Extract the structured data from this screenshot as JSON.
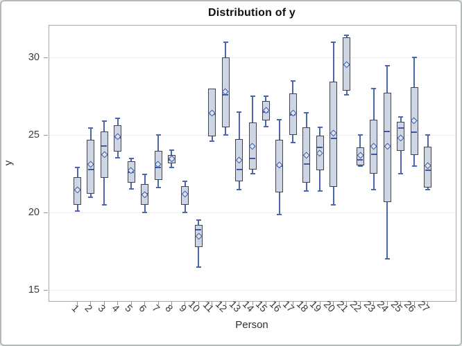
{
  "chart_data": {
    "type": "boxplot",
    "title": "Distribution of y",
    "xlabel": "Person",
    "ylabel": "y",
    "categories": [
      "1",
      "2",
      "3",
      "4",
      "5",
      "6",
      "7",
      "8",
      "9",
      "10",
      "11",
      "12",
      "13",
      "14",
      "15",
      "16",
      "17",
      "18",
      "19",
      "20",
      "21",
      "22",
      "23",
      "24",
      "25",
      "26",
      "27"
    ],
    "y_ticks": [
      15,
      20,
      25,
      30
    ],
    "ylim": [
      14.3,
      32.06
    ],
    "grid": "horizontal-only",
    "legend": "none",
    "boxes": [
      {
        "person": "1",
        "low": 20.1,
        "q1": 20.5,
        "median": 21.5,
        "q3": 22.3,
        "high": 22.9,
        "mean": 21.45
      },
      {
        "person": "2",
        "low": 21.0,
        "q1": 21.2,
        "median": 22.8,
        "q3": 24.7,
        "high": 25.45,
        "mean": 23.1
      },
      {
        "person": "3",
        "low": 20.5,
        "q1": 22.25,
        "median": 24.3,
        "q3": 25.25,
        "high": 25.9,
        "mean": 23.75
      },
      {
        "person": "4",
        "low": 23.55,
        "q1": 23.95,
        "median": 24.85,
        "q3": 25.65,
        "high": 26.1,
        "mean": 24.9
      },
      {
        "person": "5",
        "low": 21.55,
        "q1": 21.95,
        "median": 22.6,
        "q3": 23.3,
        "high": 23.5,
        "mean": 22.7
      },
      {
        "person": "6",
        "low": 20.0,
        "q1": 20.5,
        "median": 21.2,
        "q3": 21.85,
        "high": 22.45,
        "mean": 21.15
      },
      {
        "person": "7",
        "low": 21.6,
        "q1": 22.1,
        "median": 22.9,
        "q3": 24.0,
        "high": 25.0,
        "mean": 23.1
      },
      {
        "person": "8",
        "low": 22.9,
        "q1": 23.2,
        "median": 23.4,
        "q3": 23.7,
        "high": 24.05,
        "mean": 23.45
      },
      {
        "person": "9",
        "low": 20.0,
        "q1": 20.5,
        "median": 21.2,
        "q3": 21.7,
        "high": 22.0,
        "mean": 21.2
      },
      {
        "person": "10",
        "low": 16.5,
        "q1": 17.8,
        "median": 18.9,
        "q3": 19.2,
        "high": 19.5,
        "mean": 18.45
      },
      {
        "person": "11",
        "low": 24.6,
        "q1": 24.9,
        "median": 26.35,
        "q3": 28.0,
        "high": 28.0,
        "mean": 26.4
      },
      {
        "person": "12",
        "low": 25.0,
        "q1": 25.5,
        "median": 27.6,
        "q3": 30.0,
        "high": 31.0,
        "mean": 27.8
      },
      {
        "person": "13",
        "low": 21.5,
        "q1": 22.0,
        "median": 22.8,
        "q3": 24.75,
        "high": 26.5,
        "mean": 23.35
      },
      {
        "person": "14",
        "low": 22.5,
        "q1": 22.8,
        "median": 23.5,
        "q3": 25.8,
        "high": 27.5,
        "mean": 24.25
      },
      {
        "person": "15",
        "low": 25.55,
        "q1": 25.95,
        "median": 26.5,
        "q3": 27.2,
        "high": 27.5,
        "mean": 26.6
      },
      {
        "person": "16",
        "low": 19.9,
        "q1": 21.3,
        "median": 23.0,
        "q3": 24.7,
        "high": 26.0,
        "mean": 23.05
      },
      {
        "person": "17",
        "low": 24.5,
        "q1": 25.0,
        "median": 26.3,
        "q3": 27.7,
        "high": 28.5,
        "mean": 26.4
      },
      {
        "person": "18",
        "low": 21.4,
        "q1": 21.95,
        "median": 23.15,
        "q3": 25.5,
        "high": 26.45,
        "mean": 23.7
      },
      {
        "person": "19",
        "low": 21.4,
        "q1": 22.75,
        "median": 24.2,
        "q3": 24.95,
        "high": 25.5,
        "mean": 23.8
      },
      {
        "person": "20",
        "low": 20.5,
        "q1": 21.65,
        "median": 24.8,
        "q3": 28.45,
        "high": 31.0,
        "mean": 25.1
      },
      {
        "person": "21",
        "low": 27.6,
        "q1": 27.85,
        "median": 29.5,
        "q3": 31.3,
        "high": 31.45,
        "mean": 29.55
      },
      {
        "person": "22",
        "low": 23.0,
        "q1": 23.05,
        "median": 23.4,
        "q3": 24.2,
        "high": 25.0,
        "mean": 23.7
      },
      {
        "person": "23",
        "low": 21.5,
        "q1": 22.5,
        "median": 23.75,
        "q3": 26.0,
        "high": 28.0,
        "mean": 24.25
      },
      {
        "person": "24",
        "low": 17.0,
        "q1": 20.7,
        "median": 25.25,
        "q3": 27.75,
        "high": 29.45,
        "mean": 24.25
      },
      {
        "person": "25",
        "low": 22.5,
        "q1": 24.0,
        "median": 25.45,
        "q3": 25.85,
        "high": 26.15,
        "mean": 24.8
      },
      {
        "person": "26",
        "low": 23.0,
        "q1": 23.7,
        "median": 25.2,
        "q3": 28.1,
        "high": 30.0,
        "mean": 25.9
      },
      {
        "person": "27",
        "low": 21.5,
        "q1": 21.6,
        "median": 22.75,
        "q3": 24.25,
        "high": 25.0,
        "mean": 23.0
      }
    ],
    "colors": {
      "box_fill": "#cfd6e3",
      "box_border": "#3e434c",
      "whisker": "#4a67ad",
      "median": "#3a57a7",
      "mean_marker_border": "#3a57a7",
      "mean_marker_fill": "#dde4f2",
      "gridline": "#ededed",
      "axis_frame": "#a3aaaa",
      "tick": "#8c9494",
      "title_color": "#101010",
      "label_color": "#2e2e2e",
      "tick_label_color": "#3a3a3a"
    }
  }
}
